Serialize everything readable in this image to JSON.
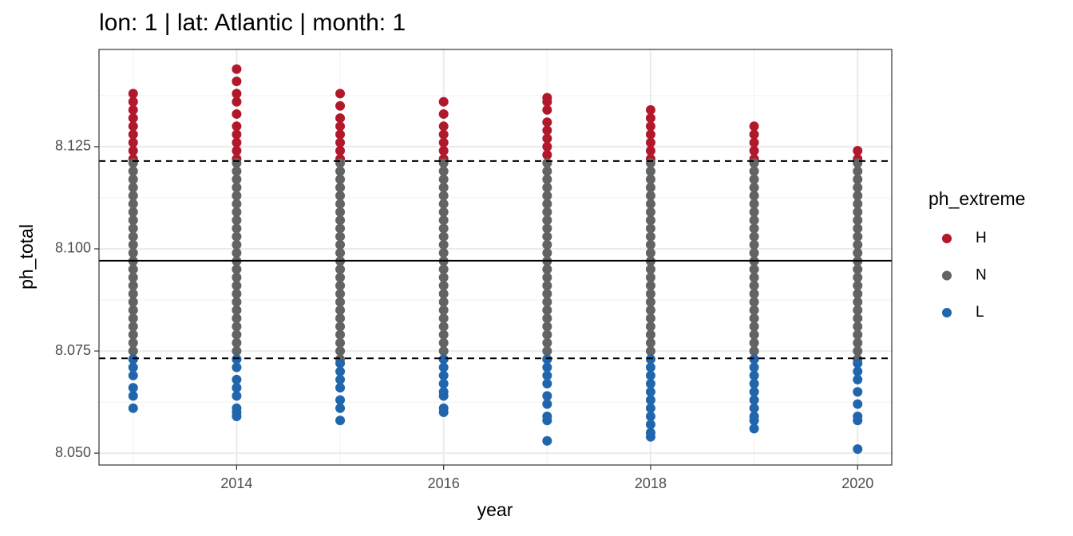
{
  "chart_data": {
    "type": "scatter",
    "title": "lon: 1 | lat: Atlantic | month: 1",
    "x_label": "year",
    "y_label": "ph_total",
    "legend_title": "ph_extreme",
    "legend_position": "right",
    "xlim": [
      2012.67,
      2020.33
    ],
    "ylim": [
      8.0471,
      8.1488
    ],
    "xticks": [
      2014,
      2016,
      2018,
      2020
    ],
    "yticks": [
      {
        "value": 8.05,
        "label": "8.050"
      },
      8.075,
      {
        "value": 8.1,
        "label": "8.100"
      },
      8.125
    ],
    "grid": true,
    "minor_grid": true,
    "hlines": [
      {
        "value": 8.0971,
        "style": "solid"
      },
      {
        "value": 8.1215,
        "style": "dashed"
      },
      {
        "value": 8.0732,
        "style": "dashed"
      }
    ],
    "series": [
      {
        "name": "H",
        "color": "#B2182B",
        "x": [
          2013,
          2013,
          2013,
          2013,
          2013,
          2013,
          2013,
          2013,
          2013,
          2014,
          2014,
          2014,
          2014,
          2014,
          2014,
          2014,
          2014,
          2014,
          2014,
          2015,
          2015,
          2015,
          2015,
          2015,
          2015,
          2015,
          2015,
          2016,
          2016,
          2016,
          2016,
          2016,
          2016,
          2016,
          2017,
          2017,
          2017,
          2017,
          2017,
          2017,
          2017,
          2017,
          2018,
          2018,
          2018,
          2018,
          2018,
          2018,
          2018,
          2019,
          2019,
          2019,
          2019,
          2019,
          2020,
          2020
        ],
        "values": [
          8.138,
          8.136,
          8.134,
          8.132,
          8.13,
          8.128,
          8.126,
          8.124,
          8.122,
          8.144,
          8.141,
          8.138,
          8.136,
          8.133,
          8.13,
          8.128,
          8.126,
          8.124,
          8.122,
          8.138,
          8.135,
          8.132,
          8.13,
          8.128,
          8.126,
          8.124,
          8.122,
          8.136,
          8.133,
          8.13,
          8.128,
          8.126,
          8.124,
          8.122,
          8.137,
          8.136,
          8.134,
          8.131,
          8.129,
          8.127,
          8.125,
          8.123,
          8.134,
          8.132,
          8.13,
          8.128,
          8.126,
          8.124,
          8.122,
          8.13,
          8.128,
          8.126,
          8.124,
          8.122,
          8.124,
          8.122
        ]
      },
      {
        "name": "N",
        "color": "#636363",
        "x": [
          2013,
          2013,
          2013,
          2013,
          2013,
          2013,
          2013,
          2013,
          2013,
          2013,
          2013,
          2013,
          2013,
          2013,
          2013,
          2013,
          2013,
          2013,
          2013,
          2013,
          2013,
          2013,
          2013,
          2013,
          2013,
          2014,
          2014,
          2014,
          2014,
          2014,
          2014,
          2014,
          2014,
          2014,
          2014,
          2014,
          2014,
          2014,
          2014,
          2014,
          2014,
          2014,
          2014,
          2014,
          2014,
          2014,
          2014,
          2014,
          2014,
          2014,
          2015,
          2015,
          2015,
          2015,
          2015,
          2015,
          2015,
          2015,
          2015,
          2015,
          2015,
          2015,
          2015,
          2015,
          2015,
          2015,
          2015,
          2015,
          2015,
          2015,
          2015,
          2015,
          2015,
          2015,
          2015,
          2016,
          2016,
          2016,
          2016,
          2016,
          2016,
          2016,
          2016,
          2016,
          2016,
          2016,
          2016,
          2016,
          2016,
          2016,
          2016,
          2016,
          2016,
          2016,
          2016,
          2016,
          2016,
          2016,
          2016,
          2016,
          2017,
          2017,
          2017,
          2017,
          2017,
          2017,
          2017,
          2017,
          2017,
          2017,
          2017,
          2017,
          2017,
          2017,
          2017,
          2017,
          2017,
          2017,
          2017,
          2017,
          2017,
          2017,
          2017,
          2017,
          2017,
          2018,
          2018,
          2018,
          2018,
          2018,
          2018,
          2018,
          2018,
          2018,
          2018,
          2018,
          2018,
          2018,
          2018,
          2018,
          2018,
          2018,
          2018,
          2018,
          2018,
          2018,
          2018,
          2018,
          2018,
          2018,
          2019,
          2019,
          2019,
          2019,
          2019,
          2019,
          2019,
          2019,
          2019,
          2019,
          2019,
          2019,
          2019,
          2019,
          2019,
          2019,
          2019,
          2019,
          2019,
          2019,
          2019,
          2019,
          2019,
          2019,
          2019,
          2020,
          2020,
          2020,
          2020,
          2020,
          2020,
          2020,
          2020,
          2020,
          2020,
          2020,
          2020,
          2020,
          2020,
          2020,
          2020,
          2020,
          2020,
          2020,
          2020,
          2020,
          2020,
          2020,
          2020,
          2020
        ],
        "values": [
          8.073,
          8.075,
          8.077,
          8.079,
          8.081,
          8.083,
          8.085,
          8.087,
          8.089,
          8.091,
          8.093,
          8.095,
          8.097,
          8.099,
          8.101,
          8.103,
          8.105,
          8.107,
          8.109,
          8.111,
          8.113,
          8.115,
          8.117,
          8.119,
          8.121,
          8.073,
          8.075,
          8.077,
          8.079,
          8.081,
          8.083,
          8.085,
          8.087,
          8.089,
          8.091,
          8.093,
          8.095,
          8.097,
          8.099,
          8.101,
          8.103,
          8.105,
          8.107,
          8.109,
          8.111,
          8.113,
          8.115,
          8.117,
          8.119,
          8.121,
          8.073,
          8.075,
          8.077,
          8.079,
          8.081,
          8.083,
          8.085,
          8.087,
          8.089,
          8.091,
          8.093,
          8.095,
          8.097,
          8.099,
          8.101,
          8.103,
          8.105,
          8.107,
          8.109,
          8.111,
          8.113,
          8.115,
          8.117,
          8.119,
          8.121,
          8.073,
          8.075,
          8.077,
          8.079,
          8.081,
          8.083,
          8.085,
          8.087,
          8.089,
          8.091,
          8.093,
          8.095,
          8.097,
          8.099,
          8.101,
          8.103,
          8.105,
          8.107,
          8.109,
          8.111,
          8.113,
          8.115,
          8.117,
          8.119,
          8.121,
          8.073,
          8.075,
          8.077,
          8.079,
          8.081,
          8.083,
          8.085,
          8.087,
          8.089,
          8.091,
          8.093,
          8.095,
          8.097,
          8.099,
          8.101,
          8.103,
          8.105,
          8.107,
          8.109,
          8.111,
          8.113,
          8.115,
          8.117,
          8.119,
          8.121,
          8.073,
          8.075,
          8.077,
          8.079,
          8.081,
          8.083,
          8.085,
          8.087,
          8.089,
          8.091,
          8.093,
          8.095,
          8.097,
          8.099,
          8.101,
          8.103,
          8.105,
          8.107,
          8.109,
          8.111,
          8.113,
          8.115,
          8.117,
          8.119,
          8.121,
          8.073,
          8.075,
          8.077,
          8.079,
          8.081,
          8.083,
          8.085,
          8.087,
          8.089,
          8.091,
          8.093,
          8.095,
          8.097,
          8.099,
          8.101,
          8.103,
          8.105,
          8.107,
          8.109,
          8.111,
          8.113,
          8.115,
          8.117,
          8.119,
          8.121,
          8.073,
          8.075,
          8.077,
          8.079,
          8.081,
          8.083,
          8.085,
          8.087,
          8.089,
          8.091,
          8.093,
          8.095,
          8.097,
          8.099,
          8.101,
          8.103,
          8.105,
          8.107,
          8.109,
          8.111,
          8.113,
          8.115,
          8.117,
          8.119,
          8.121
        ]
      },
      {
        "name": "L",
        "color": "#2166AC",
        "x": [
          2013,
          2013,
          2013,
          2013,
          2013,
          2013,
          2014,
          2014,
          2014,
          2014,
          2014,
          2014,
          2014,
          2014,
          2015,
          2015,
          2015,
          2015,
          2015,
          2015,
          2015,
          2016,
          2016,
          2016,
          2016,
          2016,
          2016,
          2016,
          2016,
          2017,
          2017,
          2017,
          2017,
          2017,
          2017,
          2017,
          2017,
          2017,
          2018,
          2018,
          2018,
          2018,
          2018,
          2018,
          2018,
          2018,
          2018,
          2018,
          2018,
          2019,
          2019,
          2019,
          2019,
          2019,
          2019,
          2019,
          2019,
          2019,
          2019,
          2020,
          2020,
          2020,
          2020,
          2020,
          2020,
          2020,
          2020
        ],
        "values": [
          8.073,
          8.071,
          8.069,
          8.066,
          8.064,
          8.061,
          8.073,
          8.071,
          8.068,
          8.066,
          8.064,
          8.061,
          8.06,
          8.059,
          8.072,
          8.07,
          8.068,
          8.066,
          8.063,
          8.061,
          8.058,
          8.073,
          8.071,
          8.069,
          8.067,
          8.065,
          8.064,
          8.061,
          8.06,
          8.073,
          8.071,
          8.069,
          8.067,
          8.064,
          8.062,
          8.059,
          8.058,
          8.053,
          8.073,
          8.071,
          8.069,
          8.067,
          8.065,
          8.063,
          8.061,
          8.059,
          8.057,
          8.055,
          8.054,
          8.073,
          8.071,
          8.069,
          8.067,
          8.065,
          8.063,
          8.061,
          8.059,
          8.058,
          8.056,
          8.072,
          8.07,
          8.068,
          8.065,
          8.062,
          8.059,
          8.058,
          8.051
        ]
      }
    ]
  }
}
